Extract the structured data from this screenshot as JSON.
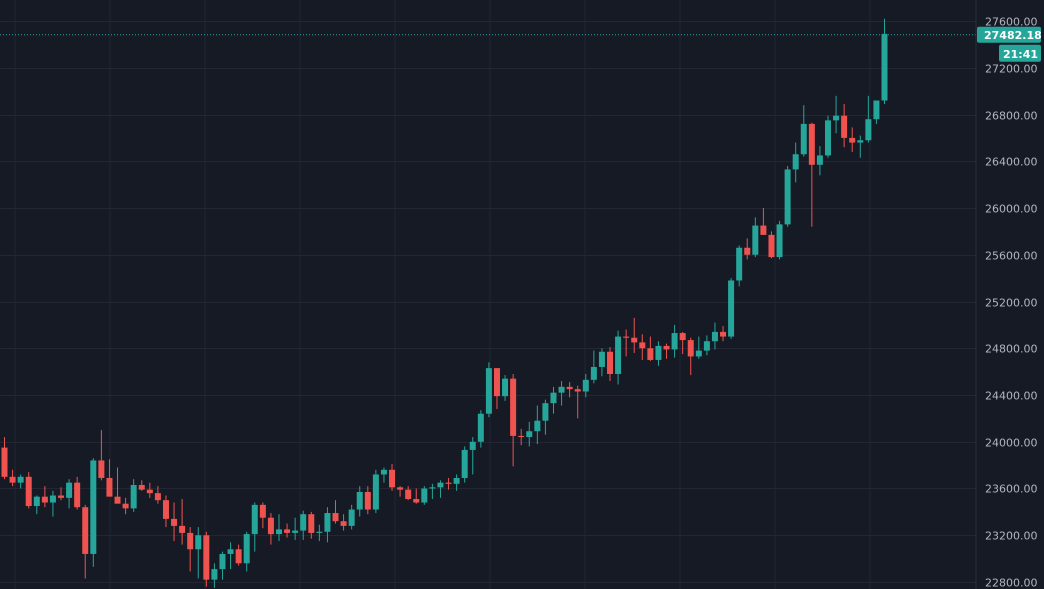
{
  "chart_data": {
    "type": "candlestick",
    "ylim": [
      22740,
      27780
    ],
    "y_ticks": [
      22800,
      23200,
      23600,
      24000,
      24400,
      24800,
      25200,
      25600,
      26000,
      26400,
      26800,
      27200,
      27600
    ],
    "y_tick_labels": [
      "22800.00",
      "23200.00",
      "23600.00",
      "24000.00",
      "24400.00",
      "24800.00",
      "25200.00",
      "25600.00",
      "26000.00",
      "26400.00",
      "26800.00",
      "27200.00",
      "27600.00"
    ],
    "grid": true,
    "last_price": 27482.18,
    "last_price_label": "27482.18",
    "countdown_label": "21:41",
    "candles": [
      [
        23950,
        24040,
        23680,
        23700
      ],
      [
        23700,
        23760,
        23620,
        23650
      ],
      [
        23650,
        23720,
        23600,
        23700
      ],
      [
        23700,
        23740,
        23430,
        23450
      ],
      [
        23450,
        23540,
        23380,
        23530
      ],
      [
        23530,
        23620,
        23440,
        23480
      ],
      [
        23480,
        23580,
        23360,
        23540
      ],
      [
        23540,
        23610,
        23500,
        23520
      ],
      [
        23520,
        23680,
        23430,
        23650
      ],
      [
        23650,
        23700,
        23420,
        23440
      ],
      [
        23440,
        23460,
        22830,
        23040
      ],
      [
        23040,
        23860,
        22930,
        23840
      ],
      [
        23840,
        24100,
        23670,
        23690
      ],
      [
        23690,
        23850,
        23560,
        23530
      ],
      [
        23530,
        23780,
        23490,
        23470
      ],
      [
        23470,
        23520,
        23380,
        23430
      ],
      [
        23430,
        23680,
        23400,
        23630
      ],
      [
        23630,
        23670,
        23580,
        23590
      ],
      [
        23590,
        23650,
        23520,
        23560
      ],
      [
        23560,
        23620,
        23470,
        23500
      ],
      [
        23500,
        23540,
        23270,
        23340
      ],
      [
        23340,
        23480,
        23150,
        23280
      ],
      [
        23280,
        23510,
        23120,
        23220
      ],
      [
        23220,
        23270,
        22890,
        23080
      ],
      [
        23080,
        23270,
        22830,
        23200
      ],
      [
        23200,
        23230,
        22760,
        22820
      ],
      [
        22820,
        22960,
        22750,
        22910
      ],
      [
        22910,
        23060,
        22820,
        23040
      ],
      [
        23040,
        23140,
        22910,
        23080
      ],
      [
        23080,
        23120,
        22940,
        22960
      ],
      [
        22960,
        23230,
        22890,
        23210
      ],
      [
        23210,
        23480,
        23060,
        23460
      ],
      [
        23460,
        23480,
        23260,
        23350
      ],
      [
        23350,
        23390,
        23120,
        23210
      ],
      [
        23210,
        23380,
        23150,
        23250
      ],
      [
        23250,
        23300,
        23180,
        23220
      ],
      [
        23220,
        23350,
        23160,
        23240
      ],
      [
        23240,
        23410,
        23160,
        23380
      ],
      [
        23380,
        23400,
        23170,
        23220
      ],
      [
        23220,
        23290,
        23150,
        23230
      ],
      [
        23230,
        23440,
        23140,
        23390
      ],
      [
        23390,
        23500,
        23300,
        23320
      ],
      [
        23320,
        23380,
        23240,
        23280
      ],
      [
        23280,
        23460,
        23250,
        23420
      ],
      [
        23420,
        23620,
        23360,
        23570
      ],
      [
        23570,
        23620,
        23380,
        23420
      ],
      [
        23420,
        23760,
        23390,
        23720
      ],
      [
        23720,
        23780,
        23650,
        23760
      ],
      [
        23760,
        23810,
        23580,
        23610
      ],
      [
        23610,
        23620,
        23530,
        23590
      ],
      [
        23590,
        23620,
        23500,
        23510
      ],
      [
        23510,
        23600,
        23470,
        23480
      ],
      [
        23480,
        23620,
        23460,
        23600
      ],
      [
        23600,
        23640,
        23510,
        23610
      ],
      [
        23610,
        23670,
        23520,
        23650
      ],
      [
        23650,
        23690,
        23590,
        23640
      ],
      [
        23640,
        23720,
        23580,
        23690
      ],
      [
        23690,
        23960,
        23650,
        23930
      ],
      [
        23930,
        24040,
        23720,
        24000
      ],
      [
        24000,
        24270,
        23950,
        24240
      ],
      [
        24240,
        24680,
        24210,
        24630
      ],
      [
        24630,
        24630,
        24280,
        24390
      ],
      [
        24390,
        24570,
        24350,
        24540
      ],
      [
        24540,
        24580,
        23790,
        24050
      ],
      [
        24050,
        24110,
        23970,
        24040
      ],
      [
        24040,
        24170,
        23960,
        24090
      ],
      [
        24090,
        24310,
        23980,
        24180
      ],
      [
        24180,
        24360,
        24060,
        24330
      ],
      [
        24330,
        24470,
        24240,
        24420
      ],
      [
        24420,
        24520,
        24310,
        24470
      ],
      [
        24470,
        24510,
        24380,
        24450
      ],
      [
        24450,
        24480,
        24200,
        24430
      ],
      [
        24430,
        24580,
        24380,
        24530
      ],
      [
        24530,
        24780,
        24500,
        24640
      ],
      [
        24640,
        24800,
        24560,
        24770
      ],
      [
        24770,
        24810,
        24520,
        24580
      ],
      [
        24580,
        24950,
        24490,
        24900
      ],
      [
        24900,
        24960,
        24730,
        24890
      ],
      [
        24890,
        25060,
        24760,
        24850
      ],
      [
        24850,
        24920,
        24700,
        24800
      ],
      [
        24800,
        24900,
        24690,
        24700
      ],
      [
        24700,
        24860,
        24650,
        24820
      ],
      [
        24820,
        24840,
        24710,
        24790
      ],
      [
        24790,
        25000,
        24720,
        24930
      ],
      [
        24930,
        24940,
        24750,
        24870
      ],
      [
        24870,
        24890,
        24570,
        24730
      ],
      [
        24730,
        24900,
        24710,
        24780
      ],
      [
        24780,
        24910,
        24740,
        24860
      ],
      [
        24860,
        25020,
        24790,
        24940
      ],
      [
        24940,
        24990,
        24860,
        24900
      ],
      [
        24900,
        25400,
        24880,
        25380
      ],
      [
        25380,
        25680,
        25330,
        25660
      ],
      [
        25660,
        25740,
        25560,
        25600
      ],
      [
        25600,
        25920,
        25580,
        25850
      ],
      [
        25850,
        26000,
        25770,
        25770
      ],
      [
        25770,
        25800,
        25570,
        25580
      ],
      [
        25580,
        25890,
        25560,
        25860
      ],
      [
        25860,
        26360,
        25840,
        26330
      ],
      [
        26330,
        26560,
        26220,
        26460
      ],
      [
        26460,
        26880,
        26440,
        26720
      ],
      [
        26720,
        26730,
        25840,
        26370
      ],
      [
        26370,
        26530,
        26280,
        26450
      ],
      [
        26450,
        26790,
        26430,
        26750
      ],
      [
        26750,
        26960,
        26640,
        26790
      ],
      [
        26790,
        26890,
        26520,
        26600
      ],
      [
        26600,
        26690,
        26480,
        26560
      ],
      [
        26560,
        26620,
        26430,
        26580
      ],
      [
        26580,
        26960,
        26560,
        26760
      ],
      [
        26760,
        26920,
        26720,
        26920
      ],
      [
        26920,
        27620,
        26890,
        27490
      ]
    ]
  },
  "colors": {
    "background": "#161a25",
    "grid": "#232733",
    "up": "#26a69a",
    "down": "#ef5350",
    "last_price_line": "#26a69a",
    "axis_text": "#b2b5be",
    "axis_border": "#2a2e39"
  }
}
